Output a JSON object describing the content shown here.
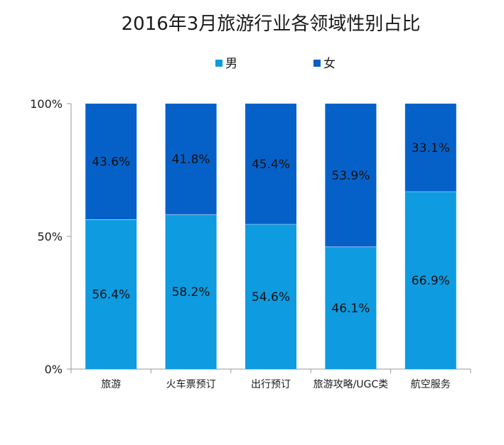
{
  "chart_data": {
    "type": "bar",
    "stacked": true,
    "title": "2016年3月旅游行业各领域性别占比",
    "categories": [
      "旅游",
      "火车票预订",
      "出行预订",
      "旅游攻略/UGC类",
      "航空服务"
    ],
    "series": [
      {
        "name": "男",
        "values": [
          56.4,
          58.2,
          54.6,
          46.1,
          66.9
        ],
        "labels": [
          "56.4%",
          "58.2%",
          "54.6%",
          "46.1%",
          "66.9%"
        ],
        "color": "#0e9be0"
      },
      {
        "name": "女",
        "values": [
          43.6,
          41.8,
          45.4,
          53.9,
          33.1
        ],
        "labels": [
          "43.6%",
          "41.8%",
          "45.4%",
          "53.9%",
          "33.1%"
        ],
        "color": "#0561c8"
      }
    ],
    "ylim": [
      0,
      100
    ],
    "yticks": [
      0,
      50,
      100
    ],
    "ytick_labels": [
      "0%",
      "50%",
      "100%"
    ],
    "legend_position": "top",
    "grid": false
  }
}
